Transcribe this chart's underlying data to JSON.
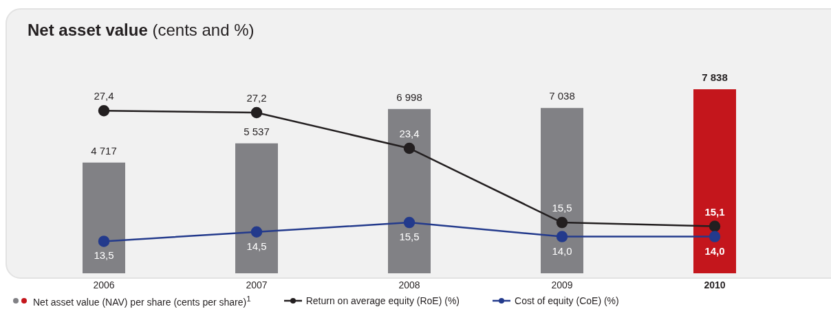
{
  "chart_data": {
    "type": "bar",
    "title": "Net asset value (cents and %)",
    "categories": [
      "2006",
      "2007",
      "2008",
      "2009",
      "2010"
    ],
    "legend": "bottom",
    "marker": "circle",
    "series": [
      {
        "name": "Net asset value (NAV) per share (cents per share)$^{1}$",
        "type": "bar",
        "colors": [
          "#818185",
          "#818185",
          "#818185",
          "#818185",
          "#c4161c"
        ],
        "values": [
          4717,
          5537,
          6998,
          7038,
          7838
        ],
        "value_labels": [
          "4 717",
          "5 537",
          "6 998",
          "7 038",
          "7 838"
        ]
      },
      {
        "name": "Return on average equity (RoE) (%)",
        "type": "line",
        "axis": "y2",
        "color": "#231f20",
        "values": [
          27.4,
          27.2,
          23.4,
          15.5,
          15.1
        ],
        "value_labels": [
          "27,4",
          "27,2",
          "23,4",
          "15,5",
          "15,1"
        ]
      },
      {
        "name": "Cost of equity (CoE) (%)",
        "type": "line",
        "axis": "y2",
        "color": "#233a8c",
        "values": [
          13.5,
          14.5,
          15.5,
          14.0,
          14.0
        ],
        "value_labels": [
          "13,5",
          "14,5",
          "15,5",
          "14,0",
          "14,0"
        ]
      }
    ]
  }
}
